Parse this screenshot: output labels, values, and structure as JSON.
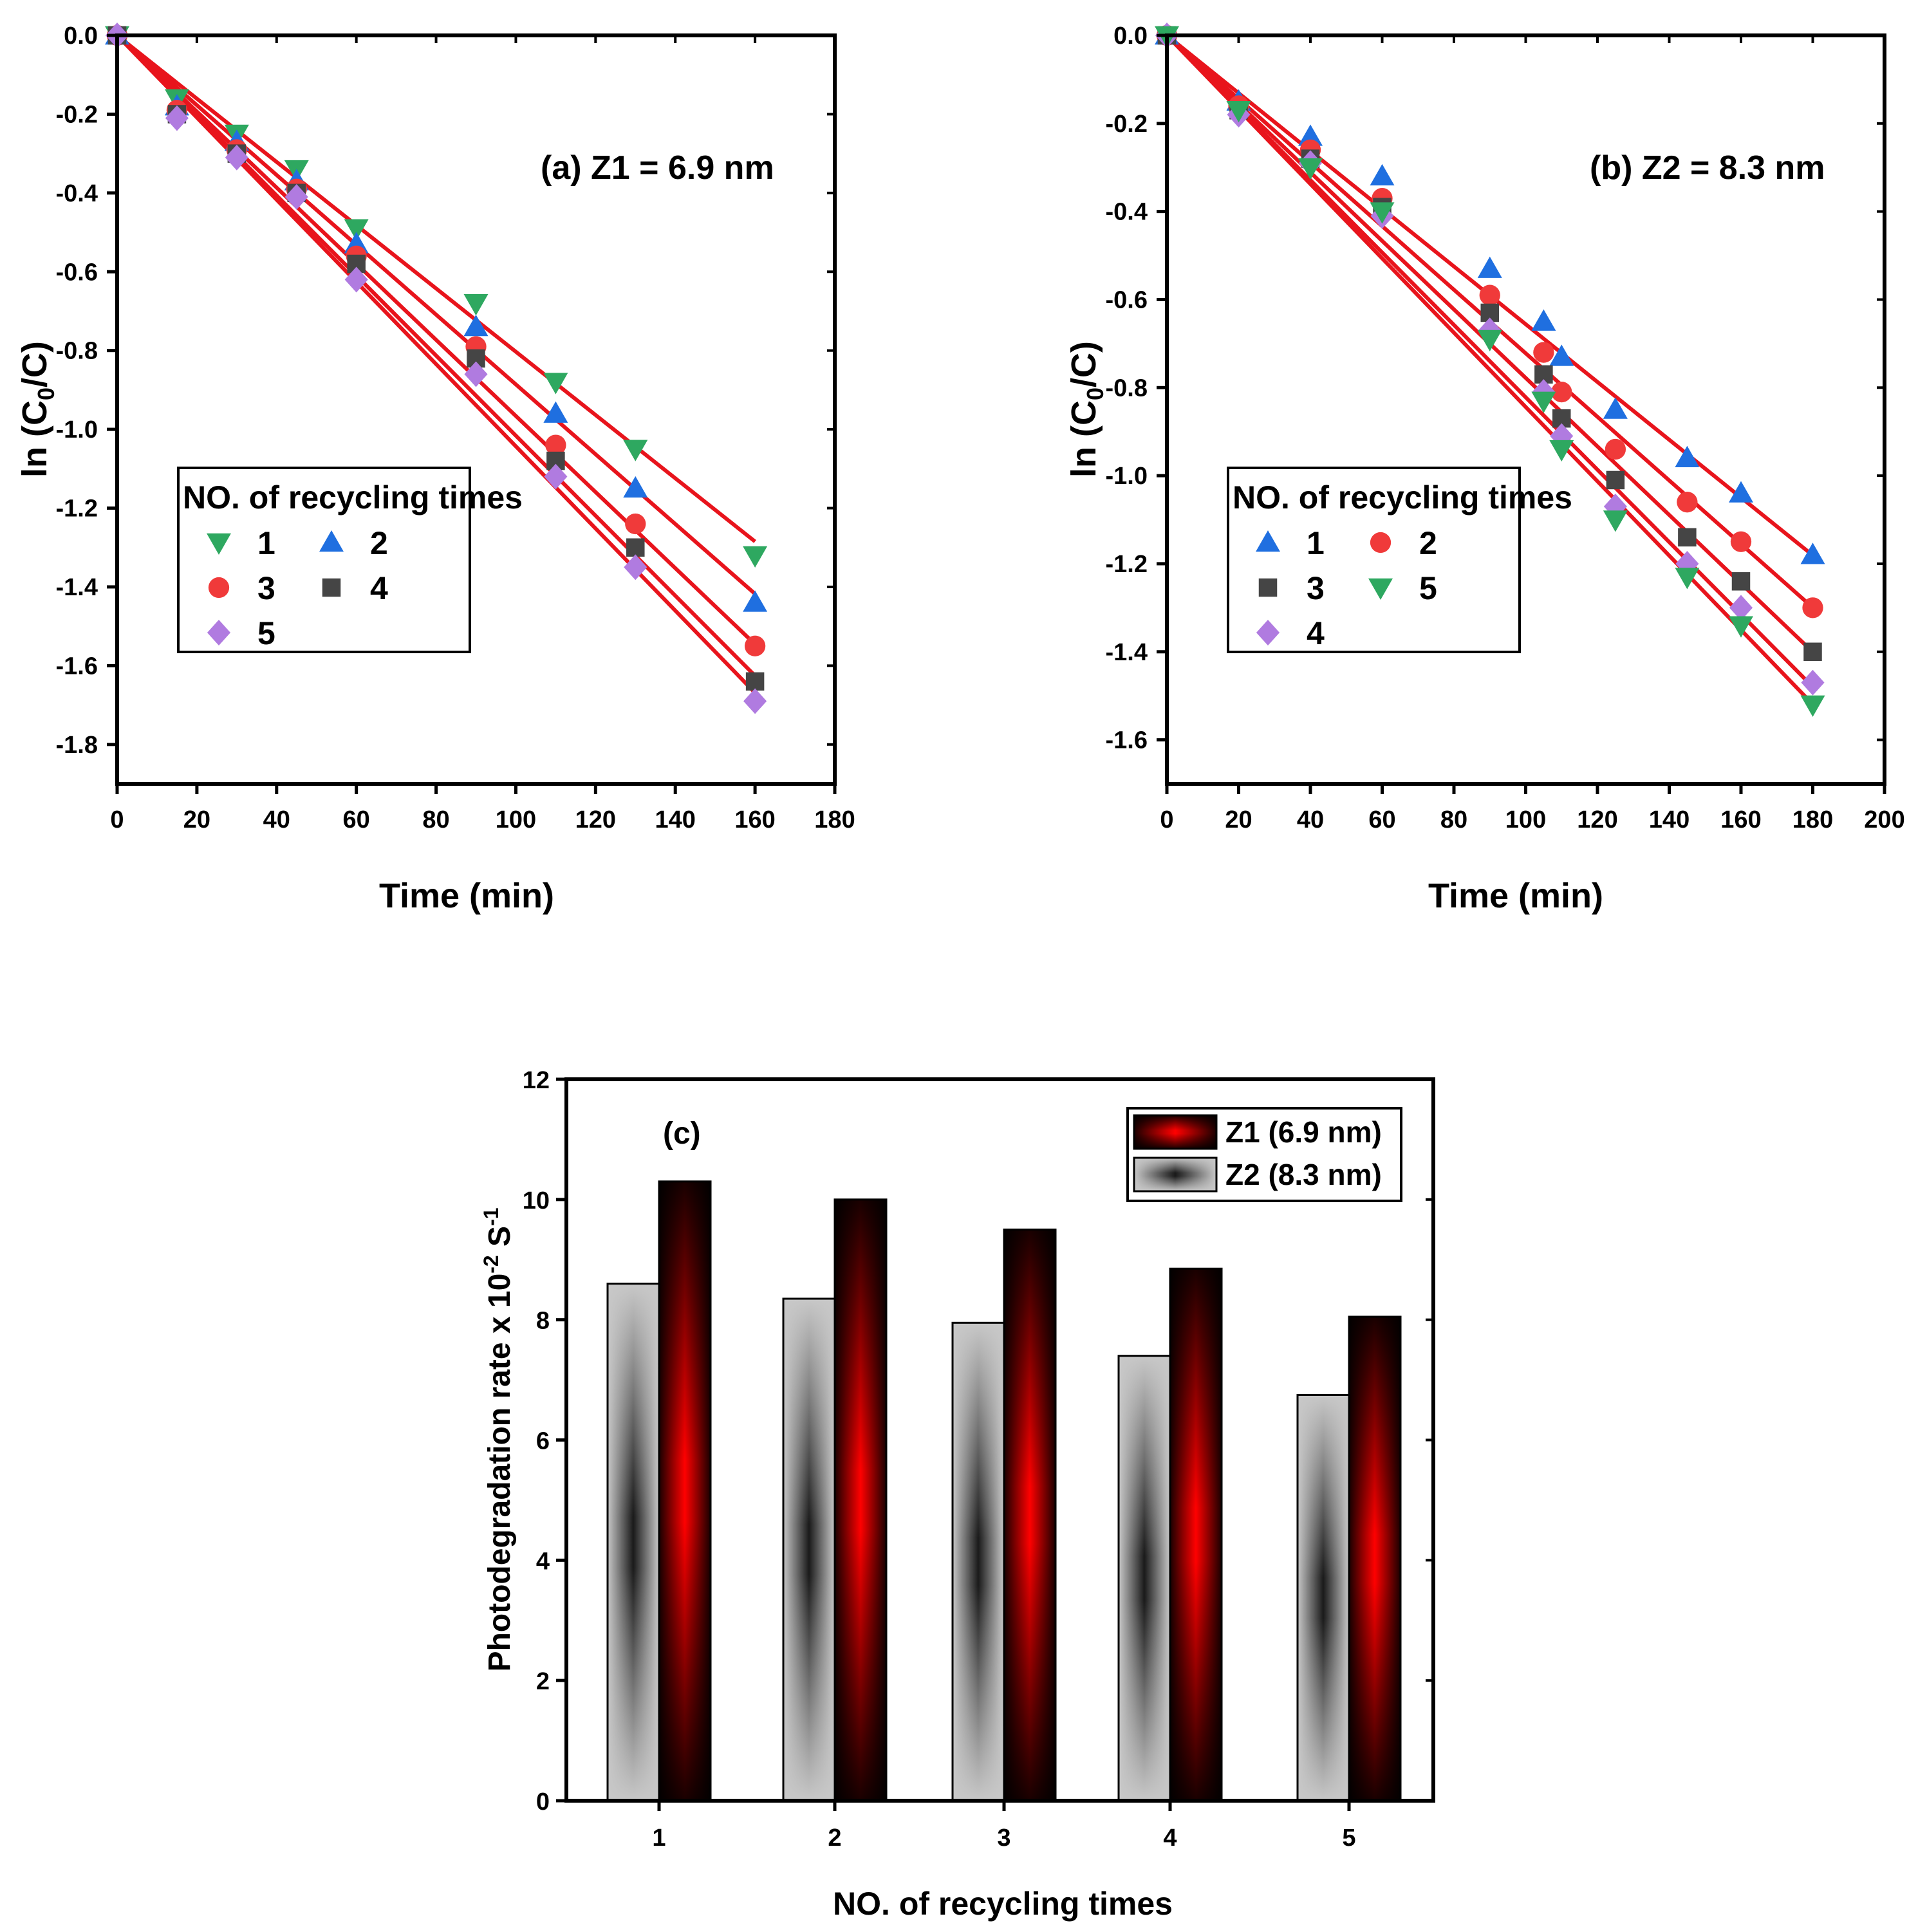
{
  "chart_data": [
    {
      "id": "a",
      "type": "scatter",
      "annotation": "(a) Z1 = 6.9 nm",
      "xlabel": "Time (min)",
      "ylabel_parts": [
        "ln  (C",
        "0",
        "/C)"
      ],
      "xlim": [
        0,
        180
      ],
      "ylim": [
        -1.9,
        0
      ],
      "xticks": [
        "0",
        "20",
        "40",
        "60",
        "80",
        "100",
        "120",
        "140",
        "160",
        "180"
      ],
      "yticks": [
        "0.0",
        "-0.2",
        "-0.4",
        "-0.6",
        "-0.8",
        "-1.0",
        "-1.2",
        "-1.4",
        "-1.6",
        "-1.8"
      ],
      "legend_title": "NO. of recycling times",
      "legend_order": [
        "1",
        "2",
        "3",
        "4",
        "5"
      ],
      "fit_line_color": "#e8141c",
      "series": [
        {
          "name": "1",
          "marker": "triangle-down",
          "color": "#2ea860",
          "slope": -0.00803,
          "x": [
            0,
            15,
            30,
            45,
            60,
            90,
            110,
            130,
            160
          ],
          "y": [
            0,
            -0.16,
            -0.25,
            -0.34,
            -0.49,
            -0.68,
            -0.88,
            -1.05,
            -1.32
          ]
        },
        {
          "name": "2",
          "marker": "triangle-up",
          "color": "#1f6fe0",
          "slope": -0.00886,
          "x": [
            0,
            15,
            30,
            45,
            60,
            90,
            110,
            130,
            160
          ],
          "y": [
            0,
            -0.18,
            -0.27,
            -0.37,
            -0.53,
            -0.74,
            -0.96,
            -1.15,
            -1.44
          ]
        },
        {
          "name": "3",
          "marker": "circle",
          "color": "#f03a3a",
          "slope": -0.00966,
          "x": [
            0,
            15,
            30,
            45,
            60,
            90,
            110,
            130,
            160
          ],
          "y": [
            0,
            -0.19,
            -0.29,
            -0.39,
            -0.56,
            -0.79,
            -1.04,
            -1.24,
            -1.55
          ]
        },
        {
          "name": "4",
          "marker": "square",
          "color": "#454545",
          "slope": -0.01016,
          "x": [
            0,
            15,
            30,
            45,
            60,
            90,
            110,
            130,
            160
          ],
          "y": [
            0,
            -0.2,
            -0.3,
            -0.4,
            -0.58,
            -0.82,
            -1.08,
            -1.3,
            -1.64
          ]
        },
        {
          "name": "5",
          "marker": "diamond",
          "color": "#b07be0",
          "slope": -0.01043,
          "x": [
            0,
            15,
            30,
            45,
            60,
            90,
            110,
            130,
            160
          ],
          "y": [
            0,
            -0.21,
            -0.31,
            -0.41,
            -0.62,
            -0.86,
            -1.12,
            -1.35,
            -1.69
          ]
        }
      ]
    },
    {
      "id": "b",
      "type": "scatter",
      "annotation": "(b) Z2 = 8.3 nm",
      "xlabel": "Time (min)",
      "ylabel_parts": [
        "ln  (C",
        "0",
        "/C)"
      ],
      "xlim": [
        0,
        200
      ],
      "ylim": [
        -1.7,
        0
      ],
      "xticks": [
        "0",
        "20",
        "40",
        "60",
        "80",
        "100",
        "120",
        "140",
        "160",
        "180",
        "200"
      ],
      "yticks": [
        "0.0",
        "-0.2",
        "-0.4",
        "-0.6",
        "-0.8",
        "-1.0",
        "-1.2",
        "-1.4",
        "-1.6"
      ],
      "legend_title": "NO. of recycling times",
      "legend_order": [
        "1",
        "2",
        "3",
        "5",
        "4"
      ],
      "fit_line_color": "#e8141c",
      "series": [
        {
          "name": "1",
          "marker": "triangle-up",
          "color": "#1f6fe0",
          "slope": -0.00656,
          "x": [
            0,
            20,
            40,
            60,
            90,
            105,
            110,
            125,
            145,
            160,
            180
          ],
          "y": [
            0,
            -0.15,
            -0.23,
            -0.32,
            -0.53,
            -0.65,
            -0.73,
            -0.85,
            -0.96,
            -1.04,
            -1.18
          ]
        },
        {
          "name": "2",
          "marker": "circle",
          "color": "#f03a3a",
          "slope": -0.00722,
          "x": [
            0,
            20,
            40,
            60,
            90,
            105,
            110,
            125,
            145,
            160,
            180
          ],
          "y": [
            0,
            -0.16,
            -0.26,
            -0.37,
            -0.59,
            -0.72,
            -0.81,
            -0.94,
            -1.06,
            -1.15,
            -1.3
          ]
        },
        {
          "name": "3",
          "marker": "square",
          "color": "#454545",
          "slope": -0.00778,
          "x": [
            0,
            20,
            40,
            60,
            90,
            105,
            110,
            125,
            145,
            160,
            180
          ],
          "y": [
            0,
            -0.17,
            -0.28,
            -0.39,
            -0.63,
            -0.77,
            -0.87,
            -1.01,
            -1.14,
            -1.24,
            -1.4
          ]
        },
        {
          "name": "4",
          "marker": "diamond",
          "color": "#b07be0",
          "slope": -0.00822,
          "x": [
            0,
            20,
            40,
            60,
            90,
            105,
            110,
            125,
            145,
            160,
            180
          ],
          "y": [
            0,
            -0.18,
            -0.29,
            -0.41,
            -0.67,
            -0.81,
            -0.91,
            -1.07,
            -1.2,
            -1.3,
            -1.47
          ]
        },
        {
          "name": "5",
          "marker": "triangle-down",
          "color": "#2ea860",
          "slope": -0.00844,
          "x": [
            0,
            20,
            40,
            60,
            90,
            105,
            110,
            125,
            145,
            160,
            180
          ],
          "y": [
            0,
            -0.17,
            -0.3,
            -0.4,
            -0.69,
            -0.83,
            -0.94,
            -1.1,
            -1.23,
            -1.34,
            -1.52
          ]
        }
      ]
    },
    {
      "id": "c",
      "type": "bar",
      "annotation": "(c)",
      "xlabel": "NO. of recycling times",
      "ylabel_parts": [
        "Photodegradation rate x 10",
        "-2",
        " S",
        "-1"
      ],
      "categories": [
        "1",
        "2",
        "3",
        "4",
        "5"
      ],
      "ylim": [
        0,
        12
      ],
      "yticks": [
        "0",
        "2",
        "4",
        "6",
        "8",
        "10",
        "12"
      ],
      "series": [
        {
          "name": "Z2 (8.3 nm)",
          "style": "grey",
          "values": [
            8.6,
            8.35,
            7.95,
            7.4,
            6.75
          ]
        },
        {
          "name": "Z1 (6.9 nm)",
          "style": "red",
          "values": [
            10.3,
            10.0,
            9.5,
            8.85,
            8.05
          ]
        }
      ],
      "legend_order": [
        "Z1 (6.9 nm)",
        "Z2 (8.3 nm)"
      ]
    }
  ]
}
